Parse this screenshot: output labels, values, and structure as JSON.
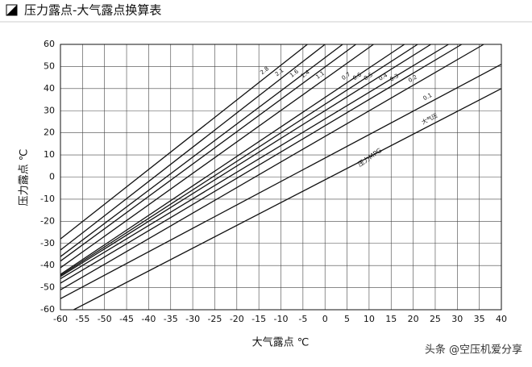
{
  "chart_data": {
    "type": "line",
    "title": "压力露点-大气露点换算表",
    "x_label": "大气露点 ℃",
    "y_label": "压力露点 ℃",
    "annotation": "压力MPG",
    "watermark": "头条 @空压机爱分享",
    "xlim": [
      -60,
      40
    ],
    "ylim": [
      -60,
      60
    ],
    "xticks": [
      -60,
      -55,
      -50,
      -45,
      -40,
      -35,
      -30,
      -25,
      -20,
      -15,
      -10,
      -5,
      0,
      5,
      10,
      15,
      20,
      25,
      30,
      35,
      40
    ],
    "yticks": [
      -60,
      -50,
      -40,
      -30,
      -20,
      -10,
      0,
      10,
      20,
      30,
      40,
      50,
      60
    ],
    "grid": true,
    "color": "#111111",
    "series": [
      {
        "name": "2.8",
        "x": [
          -60,
          -4
        ],
        "values": [
          -28,
          60
        ]
      },
      {
        "name": "2.1",
        "x": [
          -60,
          0
        ],
        "values": [
          -33,
          60
        ]
      },
      {
        "name": "1.6",
        "x": [
          -60,
          4
        ],
        "values": [
          -36,
          60
        ]
      },
      {
        "name": "1.4",
        "x": [
          -60,
          7
        ],
        "values": [
          -38,
          60
        ]
      },
      {
        "name": "1.1",
        "x": [
          -60,
          11
        ],
        "values": [
          -41,
          60
        ]
      },
      {
        "name": "0.7",
        "x": [
          -60,
          18
        ],
        "values": [
          -44,
          60
        ]
      },
      {
        "name": "0.6",
        "x": [
          -60,
          21
        ],
        "values": [
          -44.5,
          60
        ]
      },
      {
        "name": "0.5",
        "x": [
          -60,
          24
        ],
        "values": [
          -45,
          60
        ]
      },
      {
        "name": "0.4",
        "x": [
          -60,
          28
        ],
        "values": [
          -46,
          60
        ]
      },
      {
        "name": "0.3",
        "x": [
          -60,
          31
        ],
        "values": [
          -48,
          60
        ]
      },
      {
        "name": "0.2",
        "x": [
          -60,
          36
        ],
        "values": [
          -51,
          60
        ]
      },
      {
        "name": "0.1",
        "x": [
          -60,
          40
        ],
        "values": [
          -55,
          51
        ]
      },
      {
        "name": "大气压",
        "x": [
          -57,
          40
        ],
        "values": [
          -60,
          40
        ]
      }
    ]
  }
}
